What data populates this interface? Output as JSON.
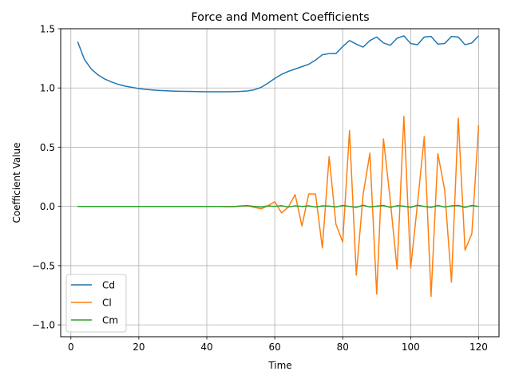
{
  "chart_data": {
    "type": "line",
    "title": "Force and Moment Coefficients",
    "xlabel": "Time",
    "ylabel": "Coefficient Value",
    "xlim": [
      -3,
      126
    ],
    "ylim": [
      -1.1,
      1.5
    ],
    "xticks": [
      0,
      20,
      40,
      60,
      80,
      100,
      120
    ],
    "yticks": [
      -1.0,
      -0.5,
      0.0,
      0.5,
      1.0,
      1.5
    ],
    "grid": true,
    "legend_position": "lower-left",
    "series": [
      {
        "name": "Cd",
        "color": "#1f77b4",
        "x": [
          2,
          4,
          6,
          8,
          10,
          12,
          14,
          16,
          18,
          20,
          22,
          24,
          26,
          28,
          30,
          32,
          34,
          36,
          38,
          40,
          42,
          44,
          46,
          48,
          50,
          52,
          54,
          56,
          58,
          60,
          62,
          64,
          66,
          68,
          70,
          72,
          74,
          76,
          78,
          80,
          82,
          84,
          86,
          88,
          90,
          92,
          94,
          96,
          98,
          100,
          102,
          104,
          106,
          108,
          110,
          112,
          114,
          116,
          118,
          120
        ],
        "y": [
          1.39,
          1.24,
          1.16,
          1.11,
          1.075,
          1.05,
          1.03,
          1.015,
          1.005,
          0.995,
          0.988,
          0.983,
          0.979,
          0.976,
          0.974,
          0.972,
          0.971,
          0.97,
          0.969,
          0.968,
          0.968,
          0.968,
          0.968,
          0.969,
          0.971,
          0.975,
          0.985,
          1.005,
          1.04,
          1.08,
          1.115,
          1.14,
          1.16,
          1.18,
          1.2,
          1.235,
          1.28,
          1.29,
          1.29,
          1.35,
          1.4,
          1.37,
          1.345,
          1.4,
          1.43,
          1.38,
          1.36,
          1.42,
          1.44,
          1.375,
          1.365,
          1.43,
          1.435,
          1.37,
          1.375,
          1.435,
          1.43,
          1.365,
          1.38,
          1.44
        ]
      },
      {
        "name": "Cl",
        "color": "#ff7f0e",
        "x": [
          2,
          4,
          6,
          8,
          10,
          12,
          14,
          16,
          18,
          20,
          22,
          24,
          26,
          28,
          30,
          32,
          34,
          36,
          38,
          40,
          42,
          44,
          46,
          48,
          50,
          52,
          54,
          56,
          58,
          60,
          62,
          64,
          66,
          68,
          70,
          72,
          74,
          76,
          78,
          80,
          82,
          84,
          86,
          88,
          90,
          92,
          94,
          96,
          98,
          100,
          102,
          104,
          106,
          108,
          110,
          112,
          114,
          116,
          118,
          120
        ],
        "y": [
          0,
          0,
          0,
          0,
          0,
          0,
          0,
          0,
          0,
          0,
          0,
          0,
          0,
          0,
          0,
          0,
          0,
          0,
          0,
          0,
          0,
          0,
          0,
          0,
          0.003,
          0.005,
          -0.008,
          -0.02,
          0.005,
          0.04,
          -0.055,
          -0.005,
          0.1,
          -0.165,
          0.105,
          0.105,
          -0.35,
          0.42,
          -0.15,
          -0.3,
          0.64,
          -0.58,
          0.1,
          0.45,
          -0.74,
          0.57,
          0.05,
          -0.53,
          0.76,
          -0.52,
          0.02,
          0.59,
          -0.76,
          0.445,
          0.14,
          -0.64,
          0.745,
          -0.37,
          -0.23,
          0.685
        ]
      },
      {
        "name": "Cm",
        "color": "#2ca02c",
        "x": [
          2,
          4,
          6,
          8,
          10,
          12,
          14,
          16,
          18,
          20,
          22,
          24,
          26,
          28,
          30,
          32,
          34,
          36,
          38,
          40,
          42,
          44,
          46,
          48,
          50,
          52,
          54,
          56,
          58,
          60,
          62,
          64,
          66,
          68,
          70,
          72,
          74,
          76,
          78,
          80,
          82,
          84,
          86,
          88,
          90,
          92,
          94,
          96,
          98,
          100,
          102,
          104,
          106,
          108,
          110,
          112,
          114,
          116,
          118,
          120
        ],
        "y": [
          0,
          0,
          0,
          0,
          0,
          0,
          0,
          0,
          0,
          0,
          0,
          0,
          0,
          0,
          0,
          0,
          0,
          0,
          0,
          0,
          0,
          0,
          -0.002,
          -0.002,
          0.004,
          0.006,
          0,
          -0.005,
          0.005,
          0,
          0.006,
          -0.005,
          0.005,
          0,
          0.005,
          -0.005,
          0.005,
          0.003,
          -0.005,
          0.008,
          0,
          -0.008,
          0.01,
          -0.005,
          0.002,
          0.008,
          -0.008,
          0.006,
          0.002,
          -0.008,
          0.01,
          0,
          -0.008,
          0.008,
          -0.005,
          0.005,
          0.008,
          -0.008,
          0.008,
          0
        ]
      }
    ]
  }
}
